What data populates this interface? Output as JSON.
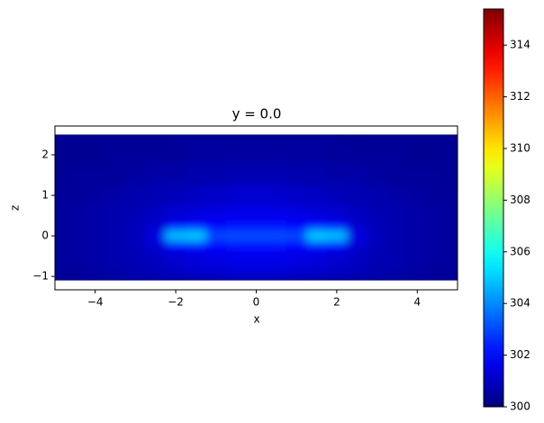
{
  "chart_data": {
    "type": "heatmap",
    "title": "y = 0.0",
    "xlabel": "x",
    "ylabel": "z",
    "colormap": "jet",
    "x": [
      -5,
      -4.5,
      -4,
      -3.5,
      -3,
      -2.5,
      -2,
      -1.5,
      -1,
      -0.5,
      0,
      0.5,
      1,
      1.5,
      2,
      2.5,
      3,
      3.5,
      4,
      4.5,
      5
    ],
    "y": [
      2.5,
      2,
      1.5,
      1,
      0.5,
      0.25,
      0,
      -0.25,
      -0.5,
      -1.1
    ],
    "values": [
      [
        300.3,
        300.3,
        300.3,
        300.3,
        300.3,
        300.3,
        300.4,
        300.4,
        300.4,
        300.4,
        300.4,
        300.4,
        300.4,
        300.4,
        300.4,
        300.3,
        300.3,
        300.3,
        300.3,
        300.3,
        300.3
      ],
      [
        300.3,
        300.3,
        300.3,
        300.4,
        300.4,
        300.4,
        300.4,
        300.5,
        300.5,
        300.5,
        300.5,
        300.5,
        300.5,
        300.5,
        300.4,
        300.4,
        300.4,
        300.4,
        300.3,
        300.3,
        300.3
      ],
      [
        300.3,
        300.4,
        300.4,
        300.4,
        300.5,
        300.6,
        300.6,
        300.7,
        300.7,
        300.8,
        300.8,
        300.8,
        300.7,
        300.7,
        300.6,
        300.6,
        300.5,
        300.4,
        300.4,
        300.4,
        300.3
      ],
      [
        300.4,
        300.4,
        300.5,
        300.6,
        300.7,
        300.8,
        300.9,
        301.0,
        301.1,
        301.2,
        301.2,
        301.2,
        301.1,
        301.0,
        300.9,
        300.8,
        300.7,
        300.6,
        300.5,
        300.4,
        300.4
      ],
      [
        300.4,
        300.5,
        300.6,
        300.7,
        300.8,
        301.0,
        301.2,
        301.4,
        301.5,
        301.6,
        301.6,
        301.6,
        301.5,
        301.4,
        301.2,
        301.0,
        300.8,
        300.7,
        300.6,
        300.5,
        300.4
      ],
      [
        300.4,
        300.5,
        300.6,
        300.7,
        300.9,
        301.2,
        301.9,
        302.1,
        302.0,
        302.1,
        302.1,
        302.1,
        302.0,
        302.1,
        301.9,
        301.2,
        300.9,
        300.7,
        300.6,
        300.5,
        300.4
      ],
      [
        300.4,
        300.5,
        300.6,
        300.7,
        300.9,
        301.5,
        304.9,
        305.1,
        303.0,
        303.1,
        303.1,
        303.1,
        303.0,
        305.1,
        304.9,
        301.5,
        300.9,
        300.7,
        300.6,
        300.5,
        300.4
      ],
      [
        300.4,
        300.5,
        300.6,
        300.7,
        300.9,
        301.2,
        301.9,
        302.1,
        302.0,
        302.1,
        302.1,
        302.1,
        302.0,
        302.1,
        301.9,
        301.2,
        300.9,
        300.7,
        300.6,
        300.5,
        300.4
      ],
      [
        300.4,
        300.5,
        300.6,
        300.7,
        300.8,
        301.0,
        301.2,
        301.4,
        301.5,
        301.6,
        301.6,
        301.6,
        301.5,
        301.4,
        301.2,
        301.0,
        300.8,
        300.7,
        300.6,
        300.5,
        300.4
      ],
      [
        300.4,
        300.4,
        300.5,
        300.6,
        300.7,
        300.8,
        300.9,
        301.0,
        301.1,
        301.2,
        301.2,
        301.2,
        301.1,
        301.0,
        300.9,
        300.8,
        300.7,
        300.6,
        300.5,
        300.4,
        300.4
      ]
    ],
    "xlim": [
      -5,
      5
    ],
    "ylim": [
      -1.33,
      2.71
    ],
    "xticks": [
      {
        "value": -4,
        "label": "−4"
      },
      {
        "value": -2,
        "label": "−2"
      },
      0,
      2,
      4
    ],
    "yticks": [
      {
        "value": -1,
        "label": "−1"
      },
      0,
      1,
      2
    ],
    "colorbar": {
      "lim": [
        300,
        315.4
      ],
      "ticks": [
        300,
        302,
        304,
        306,
        308,
        310,
        312,
        314
      ]
    }
  }
}
